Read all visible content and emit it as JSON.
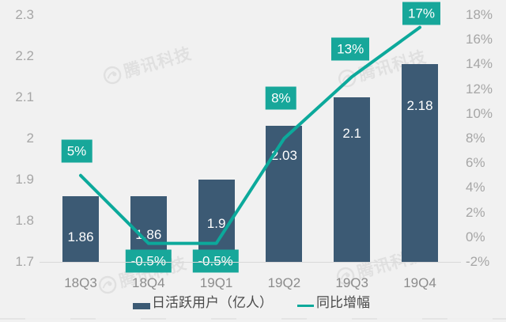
{
  "watermark": {
    "text": "腾讯科技"
  },
  "chart_data": {
    "type": "bar+line",
    "title": "",
    "categories": [
      "18Q3",
      "18Q4",
      "19Q1",
      "19Q2",
      "19Q3",
      "19Q4"
    ],
    "series": [
      {
        "name": "日活跃用户（亿人）",
        "type": "bar",
        "axis": "left",
        "values": [
          1.86,
          1.86,
          1.9,
          2.03,
          2.1,
          2.18
        ],
        "labels": [
          "1.86",
          "1.86",
          "1.9",
          "2.03",
          "2.1",
          "2.18"
        ]
      },
      {
        "name": "同比增幅",
        "type": "line",
        "axis": "right",
        "values": [
          5,
          -0.5,
          -0.5,
          8,
          13,
          17
        ],
        "labels": [
          "5%",
          "-0.5%",
          "-0.5%",
          "8%",
          "13%",
          "17%"
        ]
      }
    ],
    "left_axis": {
      "min": 1.7,
      "max": 2.3,
      "tick_step": 0.1,
      "ticks": [
        "2.3",
        "2.2",
        "2.1",
        "2",
        "1.9",
        "1.8",
        "1.7"
      ]
    },
    "right_axis": {
      "min": -2,
      "max": 18,
      "tick_step": 2,
      "ticks": [
        "18%",
        "16%",
        "14%",
        "12%",
        "10%",
        "8%",
        "6%",
        "4%",
        "2%",
        "0%",
        "-2%"
      ]
    },
    "legend": [
      {
        "label": "日活跃用户（亿人）",
        "series": "bar"
      },
      {
        "label": "同比增幅",
        "series": "line"
      }
    ],
    "grid": "off",
    "legend_position": "bottom"
  },
  "colors": {
    "background": "#f1f1f1",
    "bar": "#3c5a74",
    "line": "#0ca99b",
    "point_label_bg": "#17a79a",
    "point_label_text": "#ffffff",
    "bar_label_text": "#ffffff",
    "axis_tick_text": "#a6a6a6",
    "x_tick_text": "#8c8c8c",
    "legend_text": "#4a4a4a",
    "axis_line": "#d9d9d9",
    "watermark": "#dddddd"
  }
}
